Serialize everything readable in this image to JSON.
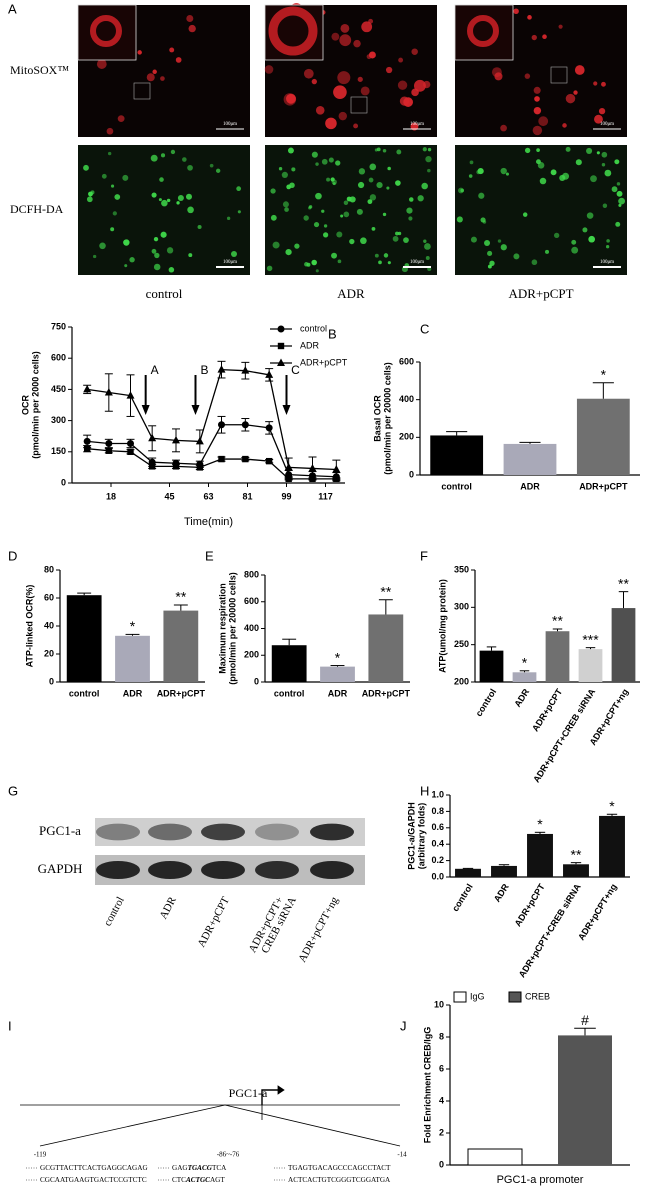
{
  "panel_a": {
    "letter": "A",
    "rows": [
      "MitoSOX™",
      "DCFH-DA"
    ],
    "columns": [
      "control",
      "ADR",
      "ADR+pCPT"
    ],
    "scale_bar": "100μm"
  },
  "chart_data": [
    {
      "type": "line",
      "panel": "B",
      "ylabel": [
        "OCR",
        "(pmol/min per 2000 cells)"
      ],
      "xlabel": "Time(min)",
      "x": [
        7,
        17,
        27,
        37,
        48,
        59,
        69,
        80,
        91,
        100,
        111,
        122
      ],
      "xlim": [
        0,
        126
      ],
      "xticks": [
        18,
        45,
        63,
        81,
        99,
        117
      ],
      "ylim": [
        0,
        750
      ],
      "yticks": [
        0,
        150,
        300,
        450,
        600,
        750
      ],
      "legend": "upper right",
      "series": [
        {
          "name": "control",
          "color": "#000000",
          "marker": "circle",
          "values": [
            200,
            190,
            190,
            100,
            95,
            90,
            280,
            280,
            265,
            40,
            35,
            30
          ],
          "errors": [
            30,
            20,
            20,
            20,
            15,
            15,
            40,
            30,
            30,
            20,
            20,
            20
          ]
        },
        {
          "name": "ADR",
          "color": "#000000",
          "marker": "square",
          "values": [
            165,
            155,
            150,
            80,
            80,
            75,
            115,
            115,
            105,
            20,
            20,
            20
          ],
          "errors": [
            15,
            10,
            10,
            10,
            10,
            10,
            10,
            8,
            8,
            5,
            5,
            5
          ]
        },
        {
          "name": "ADR+pCPT",
          "color": "#000000",
          "marker": "triangle",
          "values": [
            450,
            435,
            420,
            215,
            205,
            200,
            545,
            540,
            520,
            75,
            70,
            65
          ],
          "errors": [
            20,
            90,
            100,
            60,
            55,
            55,
            40,
            40,
            30,
            45,
            55,
            45
          ]
        }
      ],
      "annotations": [
        {
          "text": "A",
          "x": 34
        },
        {
          "text": "B",
          "x": 57
        },
        {
          "text": "C",
          "x": 99
        }
      ]
    },
    {
      "type": "bar",
      "panel": "C",
      "ylabel": [
        "Basal OCR",
        "(pmol/min per 20000 cells)"
      ],
      "categories": [
        "control",
        "ADR",
        "ADR+pCPT"
      ],
      "values": [
        210,
        165,
        405
      ],
      "errors": [
        20,
        8,
        85
      ],
      "colors": [
        "#000000",
        "#a9a9b8",
        "#707070"
      ],
      "ylim": [
        0,
        600
      ],
      "yticks": [
        0,
        200,
        400,
        600
      ],
      "annotations": [
        {
          "category": "ADR+pCPT",
          "text": "*"
        }
      ]
    },
    {
      "type": "bar",
      "panel": "D",
      "ylabel": "ATP-linked OCR(%)",
      "categories": [
        "control",
        "ADR",
        "ADR+pCPT"
      ],
      "values": [
        62,
        33,
        51
      ],
      "errors": [
        1.5,
        1,
        4
      ],
      "colors": [
        "#000000",
        "#a9a9b8",
        "#707070"
      ],
      "ylim": [
        0,
        80
      ],
      "yticks": [
        0,
        20,
        40,
        60,
        80
      ],
      "annotations": [
        {
          "category": "ADR",
          "text": "*"
        },
        {
          "category": "ADR+pCPT",
          "text": "**"
        }
      ]
    },
    {
      "type": "bar",
      "panel": "E",
      "ylabel": [
        "Maximum respiration",
        "(pmol/min per 20000 cells)"
      ],
      "categories": [
        "control",
        "ADR",
        "ADR+pCPT"
      ],
      "values": [
        275,
        115,
        505
      ],
      "errors": [
        45,
        8,
        110
      ],
      "colors": [
        "#000000",
        "#a9a9b8",
        "#707070"
      ],
      "ylim": [
        0,
        800
      ],
      "yticks": [
        0,
        200,
        400,
        600,
        800
      ],
      "annotations": [
        {
          "category": "ADR",
          "text": "*"
        },
        {
          "category": "ADR+pCPT",
          "text": "**"
        }
      ]
    },
    {
      "type": "bar",
      "panel": "F",
      "ylabel": "ATP(umol/mg protein)",
      "categories": [
        "control",
        "ADR",
        "ADR+pCPT",
        "ADR+pCPT+CREB siRNA",
        "ADR+pCPT+ng"
      ],
      "values": [
        242,
        213,
        268,
        244,
        299
      ],
      "errors": [
        5,
        2,
        3,
        2,
        22
      ],
      "colors": [
        "#000000",
        "#a9a9b8",
        "#707070",
        "#d0d0d0",
        "#505050"
      ],
      "ylim": [
        200,
        350
      ],
      "yticks": [
        200,
        250,
        300,
        350
      ],
      "annotations": [
        {
          "category": "ADR",
          "text": "*"
        },
        {
          "category": "ADR+pCPT",
          "text": "**"
        },
        {
          "category": "ADR+pCPT+CREB siRNA",
          "text": "***"
        },
        {
          "category": "ADR+pCPT+ng",
          "text": "**"
        }
      ]
    },
    {
      "type": "bar",
      "panel": "H",
      "ylabel": [
        "PGC1-a/GAPDH",
        "(arbitrary folds)"
      ],
      "categories": [
        "control",
        "ADR",
        "ADR+pCPT",
        "ADR+pCPT+CREB siRNA",
        "ADR+pCPT+ng"
      ],
      "values": [
        0.1,
        0.135,
        0.525,
        0.155,
        0.745
      ],
      "errors": [
        0.005,
        0.015,
        0.02,
        0.02,
        0.02
      ],
      "colors": [
        "#111111",
        "#111111",
        "#111111",
        "#111111",
        "#111111"
      ],
      "ylim": [
        0,
        1
      ],
      "yticks": [
        {
          "value": 0,
          "label": "0.0"
        },
        0.2,
        0.4,
        0.6,
        0.8,
        {
          "value": 1,
          "label": "1.0"
        }
      ],
      "annotations": [
        {
          "category": "ADR+pCPT",
          "text": "*"
        },
        {
          "category": "ADR+pCPT+CREB siRNA",
          "text": "**"
        },
        {
          "category": "ADR+pCPT+ng",
          "text": "*"
        }
      ]
    },
    {
      "type": "bar",
      "panel": "J",
      "ylabel": "Fold Enrichment CREB/IgG",
      "xlabel": "PGC1-a promoter",
      "ylim": [
        0,
        10
      ],
      "yticks": [
        0,
        2,
        4,
        6,
        8,
        10
      ],
      "legend": "upper left",
      "series": [
        {
          "name": "IgG",
          "color": "#ffffff",
          "values": [
            1.0
          ]
        },
        {
          "name": "CREB",
          "color": "#555555",
          "values": [
            8.1
          ],
          "errors": [
            0.45
          ]
        }
      ],
      "annotations": [
        {
          "series": "CREB",
          "text": "#"
        }
      ]
    }
  ],
  "panel_g": {
    "letter": "G",
    "bands": [
      "PGC1-a",
      "GAPDH"
    ],
    "lanes": [
      [
        "control"
      ],
      [
        "ADR"
      ],
      [
        "ADR+pCPT"
      ],
      [
        "ADR+pCPT+",
        "CREB siRNA"
      ],
      [
        "ADR+pCPT+ng"
      ]
    ]
  },
  "panel_i": {
    "letter": "I",
    "gene": "PGC1-a",
    "positions": [
      "-119",
      "-86~-76",
      "-14"
    ],
    "top": [
      [
        "GCGTTACTTCACTGAGGCAGAG"
      ],
      [
        "GAG",
        "TGACG",
        "TCA"
      ],
      [
        "TGAGTGACAGCCCAGCCTACT"
      ]
    ],
    "bottom": [
      [
        "CGCAATGAAGTGACTCCGTCTC"
      ],
      [
        "CTC",
        "ACTGC",
        "AGT"
      ],
      [
        "ACTCACTGTCGGGTCGGATGA"
      ]
    ]
  }
}
